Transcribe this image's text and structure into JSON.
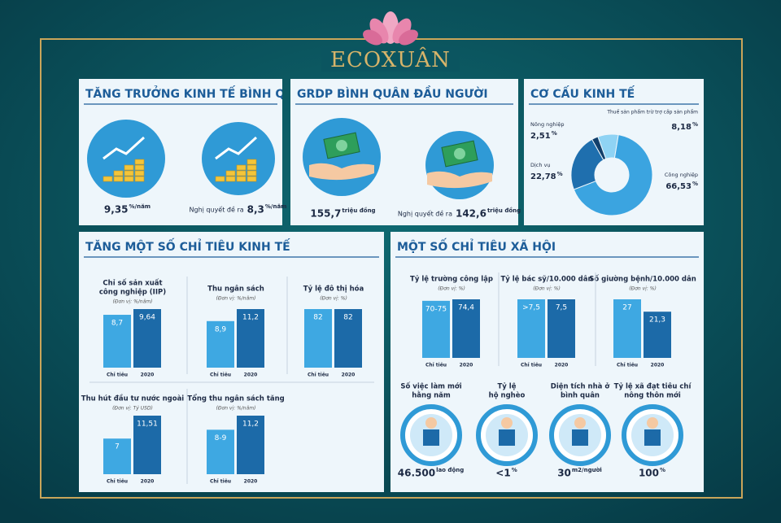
{
  "logo": {
    "brand": "ECOXUÂN"
  },
  "economic_growth": {
    "title": "TĂNG TRƯỞNG KINH TẾ BÌNH QUÂN GIAI ĐO",
    "items": [
      {
        "value": "9,35",
        "unit": "%/năm"
      },
      {
        "prefix": "Nghị quyết đề ra",
        "value": "8,3",
        "unit": "%/năm"
      }
    ]
  },
  "grdp": {
    "title": "GRDP BÌNH QUÂN ĐẦU NGƯỜI",
    "items": [
      {
        "value": "155,7",
        "unit": "triệu đồng"
      },
      {
        "prefix": "Nghị quyết đề ra",
        "value": "142,6",
        "unit": "triệu đồng"
      }
    ]
  },
  "economic_structure": {
    "type": "pie",
    "title": "CƠ CẤU KINH TẾ",
    "categories": [
      "Thuế sản phẩm trừ trợ cấp sản phẩm",
      "Công nghiệp",
      "Dịch vụ",
      "Nông nghiệp"
    ],
    "values": [
      8.18,
      66.53,
      22.78,
      2.51
    ],
    "value_labels": [
      "8,18",
      "66,53",
      "22,78",
      "2,51"
    ],
    "unit": "%",
    "colors": [
      "#8fd3f4",
      "#3ba4e0",
      "#1f6fae",
      "#123f6b"
    ]
  },
  "economic_indicators": {
    "title": "TĂNG MỘT SỐ CHỈ TIÊU KINH TẾ",
    "colors": [
      "#3ea8e2",
      "#1c6aa8"
    ],
    "charts": [
      {
        "title_lines": [
          "Chỉ số sản xuất",
          "công nghiệp (IIP)"
        ],
        "unit_note": "(Đơn vị: %/năm)",
        "categories": [
          "Chỉ tiêu",
          "2020"
        ],
        "values": [
          8.7,
          9.64
        ],
        "value_labels": [
          "8,7",
          "9,64"
        ]
      },
      {
        "title_lines": [
          "Thu ngân sách"
        ],
        "unit_note": "(Đơn vị: %/năm)",
        "categories": [
          "Chỉ tiêu",
          "2020"
        ],
        "values": [
          8.9,
          11.2
        ],
        "value_labels": [
          "8,9",
          "11,2"
        ]
      },
      {
        "title_lines": [
          "Tỷ lệ đô thị hóa"
        ],
        "unit_note": "(Đơn vị: %)",
        "categories": [
          "Chỉ tiêu",
          "2020"
        ],
        "values": [
          82,
          82
        ]
      },
      {
        "title_lines": [
          "Thu hút đầu tư nước ngoài"
        ],
        "unit_note": "(Đơn vị: Tỷ USD)",
        "categories": [
          "Chỉ tiêu",
          "2020"
        ],
        "values": [
          7,
          11.51
        ],
        "value_labels": [
          "7",
          "11,51"
        ]
      },
      {
        "title_lines": [
          "Tổng thu ngân sách tăng"
        ],
        "unit_note": "(Đơn vị: %/năm)",
        "categories": [
          "Chỉ tiêu",
          "2020"
        ],
        "values": [
          8.5,
          11.2
        ],
        "value_labels": [
          "8-9",
          "11,2"
        ]
      }
    ]
  },
  "social_indicators": {
    "title": "MỘT SỐ CHỈ TIÊU XÃ HỘI",
    "colors": [
      "#3ea8e2",
      "#1c6aa8"
    ],
    "charts": [
      {
        "title_lines": [
          "Tỷ lệ trường công lập"
        ],
        "unit_note": "(Đơn vị: %)",
        "categories": [
          "Chỉ tiêu",
          "2020"
        ],
        "values": [
          72.5,
          74.4
        ],
        "value_labels": [
          "70-75",
          "74,4"
        ]
      },
      {
        "title_lines": [
          "Tỷ lệ bác sỹ/10.000 dân"
        ],
        "unit_note": "(Đơn vị: %)",
        "categories": [
          "Chỉ tiêu",
          "2020"
        ],
        "values": [
          7.5,
          7.5
        ],
        "value_labels": [
          ">7,5",
          "7,5"
        ]
      },
      {
        "title_lines": [
          "Số giường bệnh/10.000 dân"
        ],
        "unit_note": "(Đơn vị: %)",
        "categories": [
          "Chỉ tiêu",
          "2020"
        ],
        "values": [
          27,
          21.3
        ],
        "value_labels": [
          "27",
          "21,3"
        ]
      }
    ],
    "stats": [
      {
        "title_lines": [
          "Số việc làm mới",
          "hằng năm"
        ],
        "value": "46.500",
        "unit": "lao động"
      },
      {
        "title_lines": [
          "Tỷ lệ",
          "hộ nghèo"
        ],
        "value": "<1",
        "unit": "%"
      },
      {
        "title_lines": [
          "Diện tích nhà ở",
          "bình quân"
        ],
        "value": "30",
        "unit": "m2/người"
      },
      {
        "title_lines": [
          "Tỷ lệ xã đạt tiêu chí",
          "nông thôn mới"
        ],
        "value": "100",
        "unit": "%"
      }
    ]
  }
}
